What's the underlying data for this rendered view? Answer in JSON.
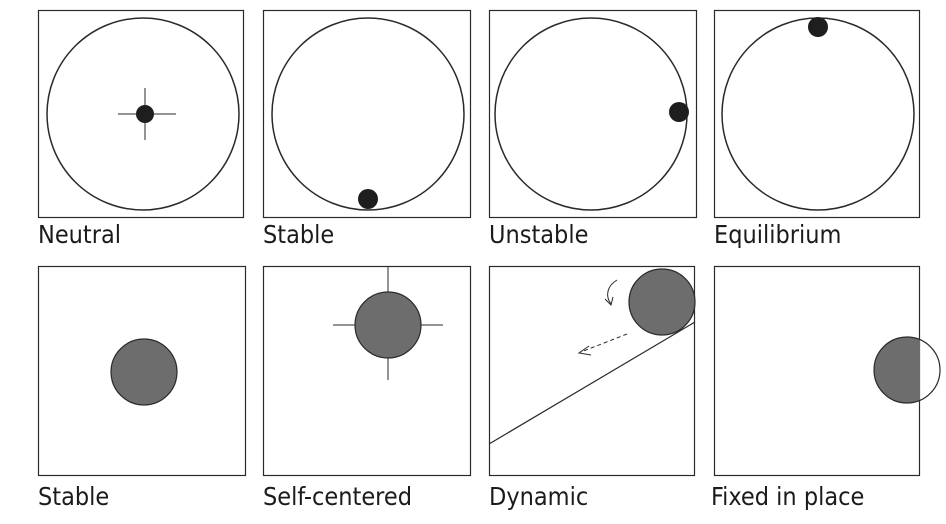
{
  "captions": {
    "neutral": "Neutral",
    "stable_circle": "Stable",
    "unstable": "Unstable",
    "equilibrium": "Equilibrium",
    "stable_square": "Stable",
    "self_centered": "Self-centered",
    "dynamic": "Dynamic",
    "fixed_in_place": "Fixed in place"
  },
  "colors": {
    "line": "#2a2a2a",
    "dot": "#1e1e1e",
    "shaded": "#6d6d6d"
  }
}
